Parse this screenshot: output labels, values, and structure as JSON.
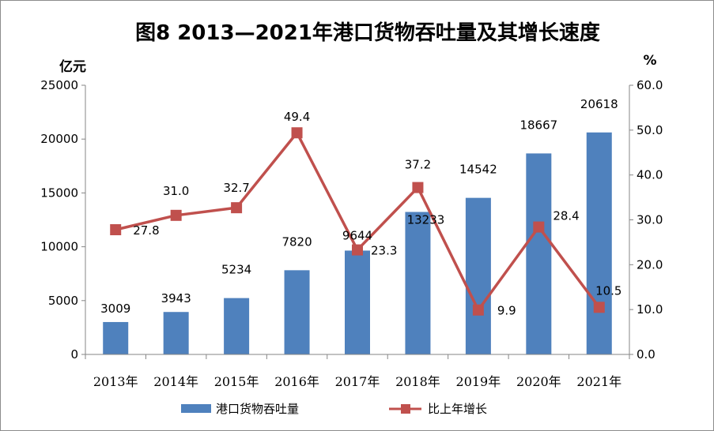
{
  "chart_data": {
    "type": "bar",
    "title": "图8 2013—2021年港口货物吞吐量及其增长速度",
    "categories": [
      "2013年",
      "2014年",
      "2015年",
      "2016年",
      "2017年",
      "2018年",
      "2019年",
      "2020年",
      "2021年"
    ],
    "left_axis": {
      "unit": "亿元",
      "ylim": [
        0,
        25000
      ],
      "ticks": [
        "0",
        "5000",
        "10000",
        "15000",
        "20000",
        "25000"
      ]
    },
    "right_axis": {
      "unit": "%",
      "ylim": [
        0,
        60
      ],
      "ticks": [
        "0.0",
        "10.0",
        "20.0",
        "30.0",
        "40.0",
        "50.0",
        "60.0"
      ]
    },
    "series": [
      {
        "name": "港口货物吞吐量",
        "type": "bar",
        "axis": "left",
        "color": "#4f81bd",
        "values": [
          3009,
          3943,
          5234,
          7820,
          9644,
          13233,
          14542,
          18667,
          20618
        ],
        "labels": [
          "3009",
          "3943",
          "5234",
          "7820",
          "9644",
          "13233",
          "14542",
          "18667",
          "20618"
        ]
      },
      {
        "name": "比上年增长",
        "type": "line",
        "axis": "right",
        "color": "#c0504d",
        "values": [
          27.8,
          31.0,
          32.7,
          49.4,
          23.3,
          37.2,
          9.9,
          28.4,
          10.5
        ],
        "labels": [
          "27.8",
          "31.0",
          "32.7",
          "49.4",
          "23.3",
          "37.2",
          "9.9",
          "28.4",
          "10.5"
        ]
      }
    ],
    "grid": false,
    "legend": "bottom"
  }
}
